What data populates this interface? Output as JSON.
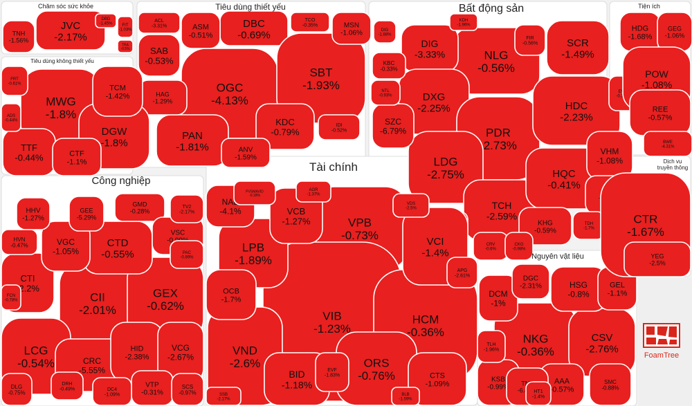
{
  "chart_data": {
    "type": "treemap",
    "value_unit": "%",
    "cell_color": "#e8201f",
    "groups": [
      {
        "name": "Chăm sóc sức khỏe",
        "tickers": [
          {
            "label": "JVC",
            "value": -2.17
          },
          {
            "label": "TNH",
            "value": -1.56
          },
          {
            "label": "FIT",
            "value": -1.03
          },
          {
            "label": "DBD",
            "value": -1.45
          },
          {
            "label": "TRA",
            "value": -0.5
          }
        ]
      },
      {
        "name": "Tiêu dùng thiết yếu",
        "tickers": [
          {
            "label": "DBC",
            "value": -0.69
          },
          {
            "label": "OGC",
            "value": -4.13
          },
          {
            "label": "SBT",
            "value": -1.93
          },
          {
            "label": "PAN",
            "value": -1.81
          },
          {
            "label": "ASM",
            "value": -0.51
          },
          {
            "label": "SAB",
            "value": -0.53
          },
          {
            "label": "KDC",
            "value": -0.79
          },
          {
            "label": "ANV",
            "value": -1.59
          },
          {
            "label": "MSN",
            "value": -1.06
          },
          {
            "label": "HAG",
            "value": -1.29
          },
          {
            "label": "TCO",
            "value": -0.35
          },
          {
            "label": "ACL",
            "value": -3.31
          },
          {
            "label": "IDI",
            "value": -0.52
          }
        ]
      },
      {
        "name": "Bất động sản",
        "tickers": [
          {
            "label": "NLG",
            "value": -0.56
          },
          {
            "label": "DIG",
            "value": -3.33
          },
          {
            "label": "SCR",
            "value": -1.49
          },
          {
            "label": "DXG",
            "value": -2.25
          },
          {
            "label": "PDR",
            "value": -2.73
          },
          {
            "label": "HDC",
            "value": -2.23
          },
          {
            "label": "LDG",
            "value": -2.75
          },
          {
            "label": "TCH",
            "value": -2.59
          },
          {
            "label": "HQC",
            "value": -0.41
          },
          {
            "label": "VHM",
            "value": -1.08
          },
          {
            "label": "KHG",
            "value": -0.59
          },
          {
            "label": "KBC",
            "value": -0.33
          },
          {
            "label": "SZC",
            "value": -6.79
          },
          {
            "label": "FIR",
            "value": -0.56
          },
          {
            "label": "NTL",
            "value": -0.93
          },
          {
            "label": "KDH",
            "value": -1.96
          },
          {
            "label": "DIG2",
            "value": -1.88
          },
          {
            "label": "EVG",
            "value": -0.34
          },
          {
            "label": "CCL",
            "value": -2.08
          },
          {
            "label": "TDH",
            "value": -1.7
          },
          {
            "label": "DXS",
            "value": -1.05
          },
          {
            "label": "CRV",
            "value": -0.6
          },
          {
            "label": "CKG",
            "value": -0.98
          }
        ]
      },
      {
        "name": "Tiện ích",
        "tickers": [
          {
            "label": "HDG",
            "value": -1.68
          },
          {
            "label": "GEG",
            "value": -1.06
          },
          {
            "label": "POW",
            "value": -1.08
          },
          {
            "label": "REE",
            "value": -0.57
          },
          {
            "label": "BWE",
            "value": -4.31
          }
        ]
      },
      {
        "name": "Tiêu dùng không thiết yếu",
        "tickers": [
          {
            "label": "MWG",
            "value": -1.8
          },
          {
            "label": "DGW",
            "value": -1.8
          },
          {
            "label": "TCM",
            "value": -1.42
          },
          {
            "label": "TTF",
            "value": -0.44
          },
          {
            "label": "CTF",
            "value": -1.1
          },
          {
            "label": "FRT",
            "value": -0.61
          },
          {
            "label": "ADS",
            "value": -0.44
          }
        ]
      },
      {
        "name": "Tài chính",
        "tickers": [
          {
            "label": "VPB",
            "value": -0.73
          },
          {
            "label": "VIB",
            "value": -1.23
          },
          {
            "label": "HCM",
            "value": -0.36
          },
          {
            "label": "VND",
            "value": -2.6
          },
          {
            "label": "ORS",
            "value": -0.76
          },
          {
            "label": "LPB",
            "value": -1.89
          },
          {
            "label": "VCB",
            "value": -1.27
          },
          {
            "label": "VCI",
            "value": -1.4
          },
          {
            "label": "NAB",
            "value": -4.1
          },
          {
            "label": "OCB",
            "value": -1.7
          },
          {
            "label": "BID",
            "value": -1.18
          },
          {
            "label": "CTS",
            "value": -1.09
          },
          {
            "label": "EVF",
            "value": -1.83
          },
          {
            "label": "AGR",
            "value": -1.37
          },
          {
            "label": "VDS",
            "value": -2.5
          },
          {
            "label": "APG",
            "value": -2.61
          },
          {
            "label": "SSB",
            "value": -2.17
          },
          {
            "label": "BLB",
            "value": -1.59
          },
          {
            "label": "PVSMAVID",
            "value": -0.18
          }
        ]
      },
      {
        "name": "Công nghiệp",
        "tickers": [
          {
            "label": "CII",
            "value": -2.01
          },
          {
            "label": "GEX",
            "value": -0.62
          },
          {
            "label": "LCG",
            "value": -0.54
          },
          {
            "label": "CTD",
            "value": -0.55
          },
          {
            "label": "CTI",
            "value": -2.2
          },
          {
            "label": "VGC",
            "value": -1.05
          },
          {
            "label": "CRC",
            "value": -5.55
          },
          {
            "label": "HID",
            "value": -2.38
          },
          {
            "label": "VCG",
            "value": -2.67
          },
          {
            "label": "HHV",
            "value": -1.27
          },
          {
            "label": "GEE",
            "value": -5.29
          },
          {
            "label": "GMD",
            "value": -0.28
          },
          {
            "label": "VSC",
            "value": -0.99
          },
          {
            "label": "HVN",
            "value": -0.47
          },
          {
            "label": "TV2",
            "value": -2.17
          },
          {
            "label": "PAC",
            "value": -0.89
          },
          {
            "label": "VTP",
            "value": -0.31
          },
          {
            "label": "SCS",
            "value": -0.97
          },
          {
            "label": "DRH",
            "value": -0.49
          },
          {
            "label": "DC4",
            "value": -1.09
          },
          {
            "label": "DLG",
            "value": -0.75
          },
          {
            "label": "FCN",
            "value": -0.78
          }
        ]
      },
      {
        "name": "Nguyên vật liệu",
        "tickers": [
          {
            "label": "NKG",
            "value": -0.36
          },
          {
            "label": "CSV",
            "value": -2.76
          },
          {
            "label": "HSG",
            "value": -0.8
          },
          {
            "label": "DCM",
            "value": -1.0
          },
          {
            "label": "DGC",
            "value": -2.31
          },
          {
            "label": "GEL",
            "value": -1.1
          },
          {
            "label": "AAA",
            "value": -0.57
          },
          {
            "label": "KSB",
            "value": -0.99
          },
          {
            "label": "TNT",
            "value": -6.48
          },
          {
            "label": "SMC",
            "value": -0.88
          },
          {
            "label": "TLH",
            "value": -1.96
          },
          {
            "label": "HT1",
            "value": -1.4
          }
        ]
      },
      {
        "name": "Dịch vụ truyền thông",
        "tickers": [
          {
            "label": "CTR",
            "value": -1.67
          },
          {
            "label": "YEG",
            "value": -2.5
          }
        ]
      }
    ]
  },
  "brand": {
    "label": "FoamTree",
    "color": "#d9261c"
  }
}
